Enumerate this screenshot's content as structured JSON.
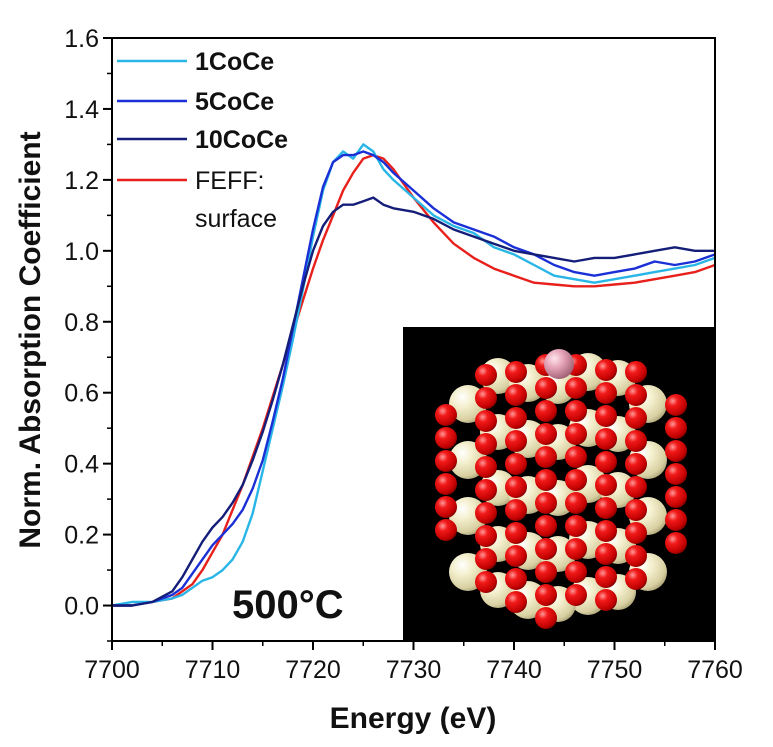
{
  "chart_data": {
    "type": "line",
    "xlabel": "Energy (eV)",
    "ylabel": "Norm. Absorption Coefficient",
    "xlim": [
      7700,
      7760
    ],
    "ylim": [
      -0.1,
      1.6
    ],
    "x_ticks": [
      "7700",
      "7710",
      "7720",
      "7730",
      "7740",
      "7750",
      "7760"
    ],
    "y_ticks": [
      "0.0",
      "0.2",
      "0.4",
      "0.6",
      "0.8",
      "1.0",
      "1.2",
      "1.4",
      "1.6"
    ],
    "grid": false,
    "legend_position": "top-left",
    "annotation": "500°C",
    "inset": "nanoparticle cluster model",
    "series": [
      {
        "name": "1CoCe",
        "color": "#29b6e6",
        "points": [
          [
            7700,
            0.0
          ],
          [
            7702,
            0.01
          ],
          [
            7704,
            0.01
          ],
          [
            7706,
            0.02
          ],
          [
            7707,
            0.03
          ],
          [
            7708,
            0.05
          ],
          [
            7709,
            0.07
          ],
          [
            7710,
            0.08
          ],
          [
            7711,
            0.1
          ],
          [
            7712,
            0.13
          ],
          [
            7713,
            0.18
          ],
          [
            7714,
            0.26
          ],
          [
            7715,
            0.38
          ],
          [
            7716,
            0.5
          ],
          [
            7717,
            0.62
          ],
          [
            7718,
            0.75
          ],
          [
            7719,
            0.89
          ],
          [
            7720,
            1.04
          ],
          [
            7721,
            1.17
          ],
          [
            7722,
            1.25
          ],
          [
            7723,
            1.28
          ],
          [
            7724,
            1.26
          ],
          [
            7725,
            1.3
          ],
          [
            7726,
            1.28
          ],
          [
            7727,
            1.23
          ],
          [
            7728,
            1.2
          ],
          [
            7730,
            1.15
          ],
          [
            7732,
            1.1
          ],
          [
            7734,
            1.07
          ],
          [
            7736,
            1.05
          ],
          [
            7738,
            1.01
          ],
          [
            7740,
            0.99
          ],
          [
            7742,
            0.96
          ],
          [
            7744,
            0.93
          ],
          [
            7746,
            0.92
          ],
          [
            7748,
            0.91
          ],
          [
            7750,
            0.92
          ],
          [
            7752,
            0.93
          ],
          [
            7754,
            0.94
          ],
          [
            7756,
            0.95
          ],
          [
            7758,
            0.96
          ],
          [
            7760,
            0.98
          ]
        ]
      },
      {
        "name": "5CoCe",
        "color": "#1a30d6",
        "points": [
          [
            7700,
            0.0
          ],
          [
            7702,
            0.0
          ],
          [
            7704,
            0.01
          ],
          [
            7706,
            0.03
          ],
          [
            7707,
            0.05
          ],
          [
            7708,
            0.09
          ],
          [
            7709,
            0.13
          ],
          [
            7710,
            0.17
          ],
          [
            7711,
            0.2
          ],
          [
            7712,
            0.23
          ],
          [
            7713,
            0.27
          ],
          [
            7714,
            0.33
          ],
          [
            7715,
            0.41
          ],
          [
            7716,
            0.52
          ],
          [
            7717,
            0.64
          ],
          [
            7718,
            0.78
          ],
          [
            7719,
            0.92
          ],
          [
            7720,
            1.06
          ],
          [
            7721,
            1.18
          ],
          [
            7722,
            1.25
          ],
          [
            7723,
            1.27
          ],
          [
            7724,
            1.27
          ],
          [
            7725,
            1.28
          ],
          [
            7726,
            1.27
          ],
          [
            7727,
            1.25
          ],
          [
            7728,
            1.22
          ],
          [
            7730,
            1.17
          ],
          [
            7732,
            1.12
          ],
          [
            7734,
            1.08
          ],
          [
            7736,
            1.06
          ],
          [
            7738,
            1.04
          ],
          [
            7740,
            1.01
          ],
          [
            7742,
            0.99
          ],
          [
            7744,
            0.96
          ],
          [
            7746,
            0.94
          ],
          [
            7748,
            0.93
          ],
          [
            7750,
            0.94
          ],
          [
            7752,
            0.95
          ],
          [
            7754,
            0.97
          ],
          [
            7756,
            0.96
          ],
          [
            7758,
            0.97
          ],
          [
            7760,
            0.99
          ]
        ]
      },
      {
        "name": "10CoCe",
        "color": "#141e78",
        "points": [
          [
            7700,
            0.0
          ],
          [
            7702,
            0.0
          ],
          [
            7704,
            0.01
          ],
          [
            7706,
            0.04
          ],
          [
            7707,
            0.08
          ],
          [
            7708,
            0.13
          ],
          [
            7709,
            0.18
          ],
          [
            7710,
            0.22
          ],
          [
            7711,
            0.25
          ],
          [
            7712,
            0.29
          ],
          [
            7713,
            0.34
          ],
          [
            7714,
            0.41
          ],
          [
            7715,
            0.49
          ],
          [
            7716,
            0.58
          ],
          [
            7717,
            0.68
          ],
          [
            7718,
            0.79
          ],
          [
            7719,
            0.9
          ],
          [
            7720,
            1.0
          ],
          [
            7721,
            1.07
          ],
          [
            7722,
            1.11
          ],
          [
            7723,
            1.13
          ],
          [
            7724,
            1.13
          ],
          [
            7725,
            1.14
          ],
          [
            7726,
            1.15
          ],
          [
            7727,
            1.13
          ],
          [
            7728,
            1.12
          ],
          [
            7730,
            1.11
          ],
          [
            7732,
            1.09
          ],
          [
            7734,
            1.06
          ],
          [
            7736,
            1.04
          ],
          [
            7738,
            1.02
          ],
          [
            7740,
            1.0
          ],
          [
            7742,
            0.99
          ],
          [
            7744,
            0.98
          ],
          [
            7746,
            0.97
          ],
          [
            7748,
            0.98
          ],
          [
            7750,
            0.98
          ],
          [
            7752,
            0.99
          ],
          [
            7754,
            1.0
          ],
          [
            7756,
            1.01
          ],
          [
            7758,
            1.0
          ],
          [
            7760,
            1.0
          ]
        ]
      },
      {
        "name": "FEFF:\nsurface",
        "color": "#e8201c",
        "points": [
          [
            7700,
            0.0
          ],
          [
            7702,
            0.0
          ],
          [
            7704,
            0.01
          ],
          [
            7706,
            0.02
          ],
          [
            7708,
            0.06
          ],
          [
            7709,
            0.1
          ],
          [
            7710,
            0.15
          ],
          [
            7711,
            0.2
          ],
          [
            7712,
            0.27
          ],
          [
            7713,
            0.34
          ],
          [
            7714,
            0.42
          ],
          [
            7715,
            0.5
          ],
          [
            7716,
            0.59
          ],
          [
            7717,
            0.68
          ],
          [
            7718,
            0.77
          ],
          [
            7719,
            0.86
          ],
          [
            7720,
            0.95
          ],
          [
            7721,
            1.03
          ],
          [
            7722,
            1.1
          ],
          [
            7723,
            1.17
          ],
          [
            7724,
            1.22
          ],
          [
            7725,
            1.26
          ],
          [
            7726,
            1.27
          ],
          [
            7727,
            1.26
          ],
          [
            7728,
            1.23
          ],
          [
            7729,
            1.19
          ],
          [
            7730,
            1.15
          ],
          [
            7732,
            1.08
          ],
          [
            7734,
            1.02
          ],
          [
            7736,
            0.98
          ],
          [
            7738,
            0.95
          ],
          [
            7740,
            0.93
          ],
          [
            7742,
            0.91
          ],
          [
            7744,
            0.905
          ],
          [
            7746,
            0.9
          ],
          [
            7748,
            0.9
          ],
          [
            7750,
            0.905
          ],
          [
            7752,
            0.91
          ],
          [
            7754,
            0.92
          ],
          [
            7756,
            0.93
          ],
          [
            7758,
            0.94
          ],
          [
            7760,
            0.96
          ]
        ]
      }
    ]
  }
}
